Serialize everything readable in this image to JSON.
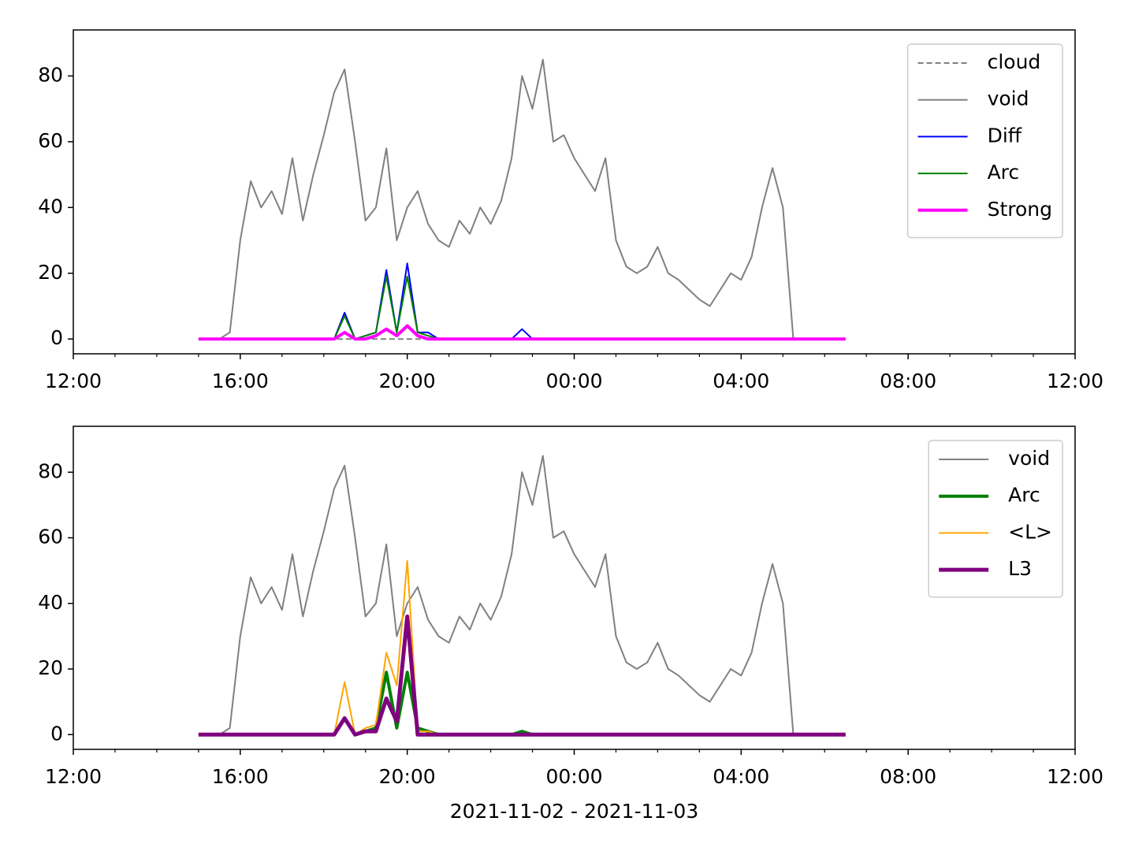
{
  "chart_data": [
    {
      "type": "line",
      "x": [
        15,
        15.25,
        15.5,
        15.75,
        16,
        16.25,
        16.5,
        16.75,
        17,
        17.25,
        17.5,
        17.75,
        18,
        18.25,
        18.5,
        18.75,
        19,
        19.25,
        19.5,
        19.75,
        20,
        20.25,
        20.5,
        20.75,
        21,
        21.25,
        21.5,
        21.75,
        22,
        22.25,
        22.5,
        22.75,
        23,
        23.25,
        23.5,
        23.75,
        24,
        24.25,
        24.5,
        24.75,
        25,
        25.25,
        25.5,
        25.75,
        26,
        26.25,
        26.5,
        26.75,
        27,
        27.25,
        27.5,
        27.75,
        28,
        28.25,
        28.5,
        28.75,
        29,
        29.25,
        29.5,
        29.75,
        30,
        30.25,
        30.5
      ],
      "series": [
        {
          "name": "cloud",
          "color": "#808080",
          "linewidth": 2,
          "linestyle": "dashed",
          "values": [
            0,
            0,
            0,
            0,
            0,
            0,
            0,
            0,
            0,
            0,
            0,
            0,
            0,
            0,
            0,
            0,
            0,
            0,
            0,
            0,
            0,
            0,
            0,
            0,
            0,
            0,
            0,
            0,
            0,
            0,
            0,
            0,
            0,
            0,
            0,
            0,
            0,
            0,
            0,
            0,
            0,
            0,
            0,
            0,
            0,
            0,
            0,
            0,
            0,
            0,
            0,
            0,
            0,
            0,
            0,
            0,
            0,
            0,
            0,
            0,
            0,
            0,
            0
          ]
        },
        {
          "name": "void",
          "color": "#808080",
          "linewidth": 2,
          "linestyle": "solid",
          "values": [
            0,
            0,
            0,
            2,
            30,
            48,
            40,
            45,
            38,
            55,
            36,
            50,
            62,
            75,
            82,
            60,
            36,
            40,
            58,
            30,
            40,
            45,
            35,
            30,
            28,
            36,
            32,
            40,
            35,
            42,
            55,
            80,
            70,
            85,
            60,
            62,
            55,
            50,
            45,
            55,
            30,
            22,
            20,
            22,
            28,
            20,
            18,
            15,
            12,
            10,
            15,
            20,
            18,
            25,
            40,
            52,
            40,
            0,
            0,
            0,
            0,
            0,
            0
          ]
        },
        {
          "name": "Diff",
          "color": "#0000ff",
          "linewidth": 2,
          "linestyle": "solid",
          "values": [
            0,
            0,
            0,
            0,
            0,
            0,
            0,
            0,
            0,
            0,
            0,
            0,
            0,
            0,
            8,
            0,
            1,
            2,
            21,
            2,
            23,
            2,
            2,
            0,
            0,
            0,
            0,
            0,
            0,
            0,
            0,
            3,
            0,
            0,
            0,
            0,
            0,
            0,
            0,
            0,
            0,
            0,
            0,
            0,
            0,
            0,
            0,
            0,
            0,
            0,
            0,
            0,
            0,
            0,
            0,
            0,
            0,
            0,
            0,
            0,
            0,
            0,
            0
          ]
        },
        {
          "name": "Arc",
          "color": "#008000",
          "linewidth": 2,
          "linestyle": "solid",
          "values": [
            0,
            0,
            0,
            0,
            0,
            0,
            0,
            0,
            0,
            0,
            0,
            0,
            0,
            0,
            7,
            0,
            1,
            2,
            19,
            2,
            19,
            2,
            1,
            0,
            0,
            0,
            0,
            0,
            0,
            0,
            0,
            0,
            0,
            0,
            0,
            0,
            0,
            0,
            0,
            0,
            0,
            0,
            0,
            0,
            0,
            0,
            0,
            0,
            0,
            0,
            0,
            0,
            0,
            0,
            0,
            0,
            0,
            0,
            0,
            0,
            0,
            0,
            0
          ]
        },
        {
          "name": "Strong",
          "color": "#ff00ff",
          "linewidth": 4,
          "linestyle": "solid",
          "values": [
            0,
            0,
            0,
            0,
            0,
            0,
            0,
            0,
            0,
            0,
            0,
            0,
            0,
            0,
            2,
            0,
            0,
            1,
            3,
            1,
            4,
            1,
            0,
            0,
            0,
            0,
            0,
            0,
            0,
            0,
            0,
            0,
            0,
            0,
            0,
            0,
            0,
            0,
            0,
            0,
            0,
            0,
            0,
            0,
            0,
            0,
            0,
            0,
            0,
            0,
            0,
            0,
            0,
            0,
            0,
            0,
            0,
            0,
            0,
            0,
            0,
            0,
            0
          ]
        }
      ],
      "xlim": [
        12,
        36
      ],
      "xticks": [
        {
          "value": 12,
          "label": "12:00"
        },
        {
          "value": 16,
          "label": "16:00"
        },
        {
          "value": 20,
          "label": "20:00"
        },
        {
          "value": 24,
          "label": "00:00"
        },
        {
          "value": 28,
          "label": "04:00"
        },
        {
          "value": 32,
          "label": "08:00"
        },
        {
          "value": 36,
          "label": "12:00"
        }
      ],
      "xminorticks": [
        13,
        14,
        15,
        17,
        18,
        19,
        21,
        22,
        23,
        25,
        26,
        27,
        29,
        30,
        31,
        33,
        34,
        35
      ],
      "ylim": [
        -4.5,
        94
      ],
      "yticks": [
        0,
        20,
        40,
        60,
        80
      ],
      "legend": "upper right"
    },
    {
      "type": "line",
      "x": [
        15,
        15.25,
        15.5,
        15.75,
        16,
        16.25,
        16.5,
        16.75,
        17,
        17.25,
        17.5,
        17.75,
        18,
        18.25,
        18.5,
        18.75,
        19,
        19.25,
        19.5,
        19.75,
        20,
        20.25,
        20.5,
        20.75,
        21,
        21.25,
        21.5,
        21.75,
        22,
        22.25,
        22.5,
        22.75,
        23,
        23.25,
        23.5,
        23.75,
        24,
        24.25,
        24.5,
        24.75,
        25,
        25.25,
        25.5,
        25.75,
        26,
        26.25,
        26.5,
        26.75,
        27,
        27.25,
        27.5,
        27.75,
        28,
        28.25,
        28.5,
        28.75,
        29,
        29.25,
        29.5,
        29.75,
        30,
        30.25,
        30.5
      ],
      "series": [
        {
          "name": "void",
          "color": "#808080",
          "linewidth": 2,
          "linestyle": "solid",
          "values": [
            0,
            0,
            0,
            2,
            30,
            48,
            40,
            45,
            38,
            55,
            36,
            50,
            62,
            75,
            82,
            60,
            36,
            40,
            58,
            30,
            40,
            45,
            35,
            30,
            28,
            36,
            32,
            40,
            35,
            42,
            55,
            80,
            70,
            85,
            60,
            62,
            55,
            50,
            45,
            55,
            30,
            22,
            20,
            22,
            28,
            20,
            18,
            15,
            12,
            10,
            15,
            20,
            18,
            25,
            40,
            52,
            40,
            0,
            0,
            0,
            0,
            0,
            0
          ]
        },
        {
          "name": "Arc",
          "color": "#008000",
          "linewidth": 4,
          "linestyle": "solid",
          "values": [
            0,
            0,
            0,
            0,
            0,
            0,
            0,
            0,
            0,
            0,
            0,
            0,
            0,
            0,
            5,
            0,
            1,
            2,
            19,
            2,
            19,
            2,
            1,
            0,
            0,
            0,
            0,
            0,
            0,
            0,
            0,
            1,
            0,
            0,
            0,
            0,
            0,
            0,
            0,
            0,
            0,
            0,
            0,
            0,
            0,
            0,
            0,
            0,
            0,
            0,
            0,
            0,
            0,
            0,
            0,
            0,
            0,
            0,
            0,
            0,
            0,
            0,
            0
          ]
        },
        {
          "name": "<L>",
          "color": "#ffa500",
          "linewidth": 2,
          "linestyle": "solid",
          "values": [
            0,
            0,
            0,
            0,
            0,
            0,
            0,
            0,
            0,
            0,
            0,
            0,
            0,
            0,
            16,
            0,
            2,
            3,
            25,
            15,
            53,
            1,
            1,
            0,
            0,
            0,
            0,
            0,
            0,
            0,
            0,
            0,
            0,
            0,
            0,
            0,
            0,
            0,
            0,
            0,
            0,
            0,
            0,
            0,
            0,
            0,
            0,
            0,
            0,
            0,
            0,
            0,
            0,
            0,
            0,
            0,
            0,
            0,
            0,
            0,
            0,
            0,
            0
          ]
        },
        {
          "name": "L3",
          "color": "#800080",
          "linewidth": 5,
          "linestyle": "solid",
          "values": [
            0,
            0,
            0,
            0,
            0,
            0,
            0,
            0,
            0,
            0,
            0,
            0,
            0,
            0,
            5,
            0,
            1,
            1,
            11,
            4,
            36,
            0,
            0,
            0,
            0,
            0,
            0,
            0,
            0,
            0,
            0,
            0,
            0,
            0,
            0,
            0,
            0,
            0,
            0,
            0,
            0,
            0,
            0,
            0,
            0,
            0,
            0,
            0,
            0,
            0,
            0,
            0,
            0,
            0,
            0,
            0,
            0,
            0,
            0,
            0,
            0,
            0,
            0
          ]
        }
      ],
      "xlim": [
        12,
        36
      ],
      "xticks": [
        {
          "value": 12,
          "label": "12:00"
        },
        {
          "value": 16,
          "label": "16:00"
        },
        {
          "value": 20,
          "label": "20:00"
        },
        {
          "value": 24,
          "label": "00:00"
        },
        {
          "value": 28,
          "label": "04:00"
        },
        {
          "value": 32,
          "label": "08:00"
        },
        {
          "value": 36,
          "label": "12:00"
        }
      ],
      "xminorticks": [
        13,
        14,
        15,
        17,
        18,
        19,
        21,
        22,
        23,
        25,
        26,
        27,
        29,
        30,
        31,
        33,
        34,
        35
      ],
      "ylim": [
        -4.5,
        94
      ],
      "yticks": [
        0,
        20,
        40,
        60,
        80
      ],
      "legend": "upper right",
      "xlabel": "2021-11-02 - 2021-11-03"
    }
  ]
}
